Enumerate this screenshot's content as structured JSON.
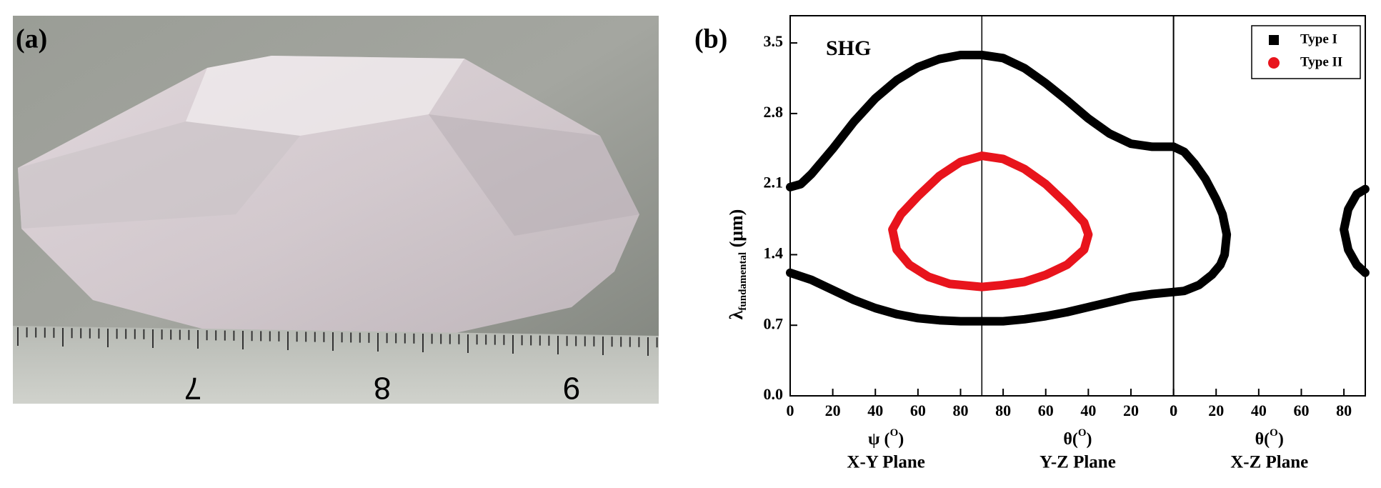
{
  "figure": {
    "panel_labels": [
      "(a)",
      "(b)"
    ]
  },
  "photo": {
    "ruler_labels": [
      "7",
      "8",
      "9"
    ]
  },
  "chart_data": [
    {
      "type": "line",
      "title": "SHG",
      "ylabel": [
        "λ",
        "fundamental",
        " (μm)"
      ],
      "xlabel": [
        "ψ (",
        "O",
        ")"
      ],
      "plane": "X-Y Plane",
      "xlim": [
        0,
        90
      ],
      "xticks": [
        0,
        20,
        40,
        60,
        80
      ],
      "ylim": [
        0,
        3.77
      ],
      "yticks": [
        {
          "value": 0,
          "label": "0.0"
        },
        0.7,
        1.4,
        2.1,
        2.8,
        3.5
      ],
      "series": [
        {
          "name": "Type I",
          "color": "#000000",
          "x": [
            0,
            5,
            10,
            20,
            30,
            40,
            50,
            60,
            70,
            80,
            90,
            null,
            0,
            10,
            20,
            30,
            40,
            50,
            60,
            70,
            80,
            90
          ],
          "values": [
            2.07,
            2.1,
            2.2,
            2.45,
            2.72,
            2.95,
            3.13,
            3.26,
            3.34,
            3.38,
            3.38,
            null,
            1.22,
            1.15,
            1.05,
            0.95,
            0.87,
            0.81,
            0.77,
            0.75,
            0.74,
            0.74
          ]
        },
        {
          "name": "Type II",
          "color": "#e8141c",
          "x": [
            90,
            80,
            70,
            60,
            52,
            48,
            50,
            56,
            65,
            75,
            90
          ],
          "values": [
            2.38,
            2.32,
            2.18,
            1.98,
            1.8,
            1.65,
            1.45,
            1.3,
            1.18,
            1.11,
            1.08
          ]
        }
      ]
    },
    {
      "type": "line",
      "xlabel": [
        "θ(",
        "O",
        ")"
      ],
      "plane": "Y-Z Plane",
      "xlim": [
        90,
        0
      ],
      "xticks": [
        80,
        60,
        40,
        20,
        0
      ],
      "ylim": [
        0,
        3.77
      ],
      "series": [
        {
          "color": "#000000",
          "x": [
            90,
            80,
            70,
            60,
            50,
            40,
            30,
            20,
            10,
            0,
            null,
            90,
            80,
            70,
            60,
            50,
            40,
            30,
            20,
            10,
            0
          ],
          "values": [
            3.38,
            3.35,
            3.25,
            3.1,
            2.93,
            2.75,
            2.6,
            2.5,
            2.47,
            2.47,
            null,
            0.74,
            0.74,
            0.76,
            0.79,
            0.83,
            0.88,
            0.93,
            0.98,
            1.01,
            1.03
          ]
        },
        {
          "color": "#e8141c",
          "x": [
            90,
            80,
            70,
            60,
            50,
            42,
            40,
            42,
            50,
            60,
            70,
            80,
            90
          ],
          "values": [
            2.38,
            2.35,
            2.25,
            2.1,
            1.9,
            1.72,
            1.6,
            1.45,
            1.3,
            1.2,
            1.13,
            1.1,
            1.08
          ]
        }
      ]
    },
    {
      "type": "line",
      "xlabel": [
        "θ(",
        "O",
        ")"
      ],
      "plane": "X-Z Plane",
      "xlim": [
        0,
        90
      ],
      "xticks": [
        0,
        20,
        40,
        60,
        80
      ],
      "ylim": [
        0,
        3.77
      ],
      "series": [
        {
          "color": "#000000",
          "x": [
            0,
            5,
            10,
            15,
            20,
            23,
            25,
            24,
            22,
            18,
            12,
            5,
            0,
            null,
            90,
            86,
            82,
            80,
            82,
            86,
            90
          ],
          "values": [
            2.47,
            2.42,
            2.3,
            2.15,
            1.95,
            1.8,
            1.6,
            1.4,
            1.3,
            1.2,
            1.1,
            1.04,
            1.03,
            null,
            2.05,
            2.0,
            1.85,
            1.65,
            1.45,
            1.3,
            1.22
          ]
        }
      ]
    }
  ]
}
